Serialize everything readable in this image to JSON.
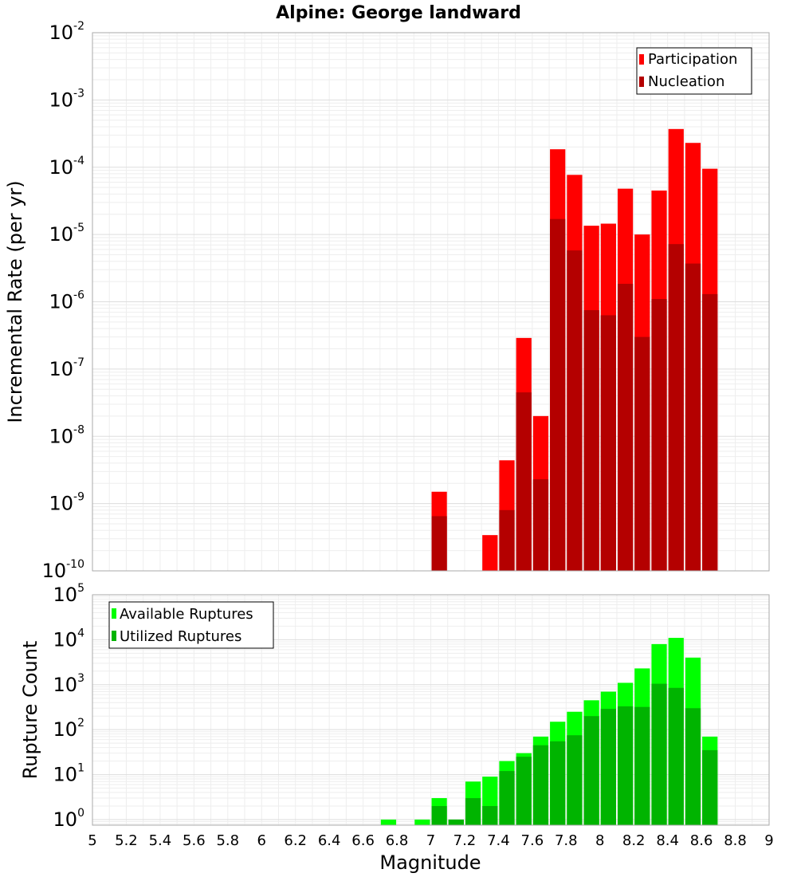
{
  "chart_data": [
    {
      "type": "bar",
      "title": "Alpine: George landward",
      "ylabel": "Incremental Rate (per yr)",
      "yscale": "log",
      "ylim": [
        1e-10,
        0.01
      ],
      "xlim": [
        5,
        9
      ],
      "grid": true,
      "legend_position": "top-right",
      "bar_width": 0.1,
      "y_tick_labels": [
        {
          "base": "10",
          "exp": "-10",
          "value": 1e-10
        },
        {
          "base": "10",
          "exp": "-9",
          "value": 1e-09
        },
        {
          "base": "10",
          "exp": "-8",
          "value": 1e-08
        },
        {
          "base": "10",
          "exp": "-7",
          "value": 1e-07
        },
        {
          "base": "10",
          "exp": "-6",
          "value": 1e-06
        },
        {
          "base": "10",
          "exp": "-5",
          "value": 1e-05
        },
        {
          "base": "10",
          "exp": "-4",
          "value": 0.0001
        },
        {
          "base": "10",
          "exp": "-3",
          "value": 0.001
        },
        {
          "base": "10",
          "exp": "-2",
          "value": 0.01
        }
      ],
      "series": [
        {
          "name": "Participation",
          "color": "#ff0000",
          "points": [
            {
              "x": 7.05,
              "y": 1.5e-09
            },
            {
              "x": 7.35,
              "y": 3.4e-10
            },
            {
              "x": 7.45,
              "y": 4.4e-09
            },
            {
              "x": 7.55,
              "y": 2.9e-07
            },
            {
              "x": 7.65,
              "y": 2e-08
            },
            {
              "x": 7.75,
              "y": 0.000185
            },
            {
              "x": 7.85,
              "y": 7.7e-05
            },
            {
              "x": 7.95,
              "y": 1.35e-05
            },
            {
              "x": 8.05,
              "y": 1.45e-05
            },
            {
              "x": 8.15,
              "y": 4.8e-05
            },
            {
              "x": 8.25,
              "y": 1e-05
            },
            {
              "x": 8.35,
              "y": 4.5e-05
            },
            {
              "x": 8.45,
              "y": 0.00037
            },
            {
              "x": 8.55,
              "y": 0.00023
            },
            {
              "x": 8.65,
              "y": 9.5e-05
            }
          ]
        },
        {
          "name": "Nucleation",
          "color": "#b40000",
          "points": [
            {
              "x": 7.05,
              "y": 6.5e-10
            },
            {
              "x": 7.45,
              "y": 8e-10
            },
            {
              "x": 7.55,
              "y": 4.5e-08
            },
            {
              "x": 7.65,
              "y": 2.3e-09
            },
            {
              "x": 7.75,
              "y": 1.7e-05
            },
            {
              "x": 7.85,
              "y": 5.8e-06
            },
            {
              "x": 7.95,
              "y": 7.5e-07
            },
            {
              "x": 8.05,
              "y": 6.3e-07
            },
            {
              "x": 8.15,
              "y": 1.85e-06
            },
            {
              "x": 8.25,
              "y": 3e-07
            },
            {
              "x": 8.35,
              "y": 1.1e-06
            },
            {
              "x": 8.45,
              "y": 7.2e-06
            },
            {
              "x": 8.55,
              "y": 3.7e-06
            },
            {
              "x": 8.65,
              "y": 1.3e-06
            }
          ]
        }
      ]
    },
    {
      "type": "bar",
      "xlabel": "Magnitude",
      "ylabel": "Rupture Count",
      "yscale": "log",
      "ylim": [
        0.75,
        100000
      ],
      "xlim": [
        5,
        9
      ],
      "grid": true,
      "legend_position": "top-left",
      "bar_width": 0.1,
      "x_tick_labels": [
        "5",
        "5.2",
        "5.4",
        "5.6",
        "5.8",
        "6",
        "6.2",
        "6.4",
        "6.6",
        "6.8",
        "7",
        "7.2",
        "7.4",
        "7.6",
        "7.8",
        "8",
        "8.2",
        "8.4",
        "8.6",
        "8.8",
        "9"
      ],
      "y_tick_labels": [
        {
          "base": "10",
          "exp": "0",
          "value": 1
        },
        {
          "base": "10",
          "exp": "1",
          "value": 10
        },
        {
          "base": "10",
          "exp": "2",
          "value": 100
        },
        {
          "base": "10",
          "exp": "3",
          "value": 1000
        },
        {
          "base": "10",
          "exp": "4",
          "value": 10000
        },
        {
          "base": "10",
          "exp": "5",
          "value": 100000
        }
      ],
      "series": [
        {
          "name": "Available Ruptures",
          "color": "#00ff00",
          "points": [
            {
              "x": 6.75,
              "y": 1
            },
            {
              "x": 6.95,
              "y": 1
            },
            {
              "x": 7.05,
              "y": 3
            },
            {
              "x": 7.15,
              "y": 1
            },
            {
              "x": 7.25,
              "y": 7
            },
            {
              "x": 7.35,
              "y": 9
            },
            {
              "x": 7.45,
              "y": 20
            },
            {
              "x": 7.55,
              "y": 30
            },
            {
              "x": 7.65,
              "y": 70
            },
            {
              "x": 7.75,
              "y": 150
            },
            {
              "x": 7.85,
              "y": 250
            },
            {
              "x": 7.95,
              "y": 450
            },
            {
              "x": 8.05,
              "y": 700
            },
            {
              "x": 8.15,
              "y": 1100
            },
            {
              "x": 8.25,
              "y": 2300
            },
            {
              "x": 8.35,
              "y": 8000
            },
            {
              "x": 8.45,
              "y": 11000
            },
            {
              "x": 8.55,
              "y": 4000
            },
            {
              "x": 8.65,
              "y": 70
            }
          ]
        },
        {
          "name": "Utilized Ruptures",
          "color": "#00b400",
          "points": [
            {
              "x": 7.05,
              "y": 2
            },
            {
              "x": 7.15,
              "y": 1
            },
            {
              "x": 7.25,
              "y": 3
            },
            {
              "x": 7.35,
              "y": 2
            },
            {
              "x": 7.45,
              "y": 12
            },
            {
              "x": 7.55,
              "y": 25
            },
            {
              "x": 7.65,
              "y": 45
            },
            {
              "x": 7.75,
              "y": 55
            },
            {
              "x": 7.85,
              "y": 75
            },
            {
              "x": 7.95,
              "y": 200
            },
            {
              "x": 8.05,
              "y": 290
            },
            {
              "x": 8.15,
              "y": 330
            },
            {
              "x": 8.25,
              "y": 320
            },
            {
              "x": 8.35,
              "y": 1050
            },
            {
              "x": 8.45,
              "y": 850
            },
            {
              "x": 8.55,
              "y": 300
            },
            {
              "x": 8.65,
              "y": 35
            }
          ]
        }
      ]
    }
  ]
}
